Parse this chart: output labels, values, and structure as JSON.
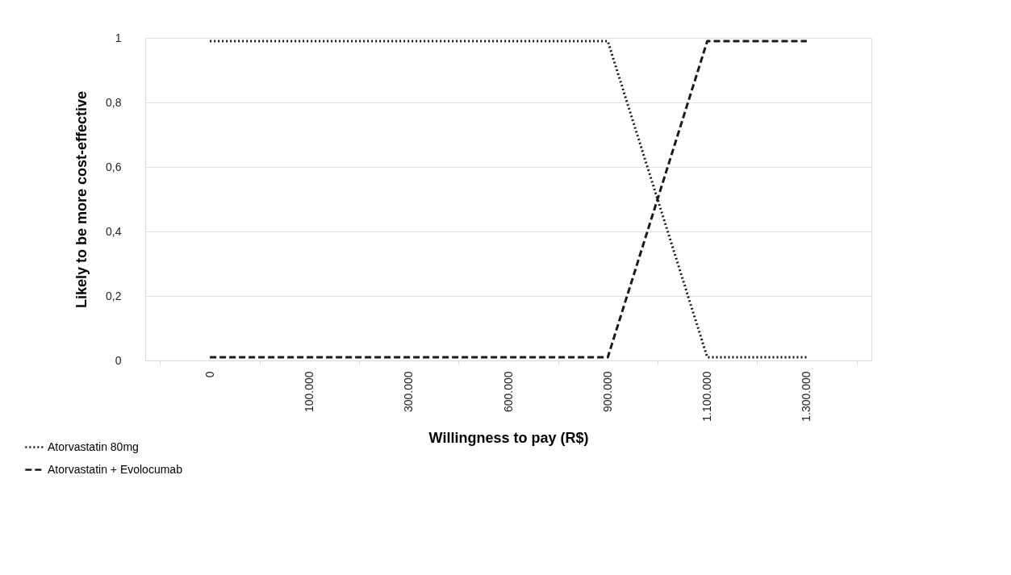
{
  "chart_data": {
    "type": "line",
    "xlabel": "Willingness to pay (R$)",
    "ylabel": "Likely to be more cost-effective",
    "categories": [
      "0",
      "100.000",
      "300.000",
      "600.000",
      "900.000",
      "1.100.000",
      "1.300.000"
    ],
    "series": [
      {
        "name": "Atorvastatin 80mg",
        "color": "#1a1a1a",
        "line_style": "dotted",
        "values": [
          0.99,
          0.99,
          0.99,
          0.99,
          0.99,
          0.01,
          0.01
        ]
      },
      {
        "name": "Atorvastatin + Evolocumab",
        "color": "#1a1a1a",
        "line_style": "dashed",
        "values": [
          0.01,
          0.01,
          0.01,
          0.01,
          0.01,
          0.99,
          0.99
        ]
      }
    ],
    "ylim": [
      0,
      1
    ],
    "yticks": [
      0,
      {
        "value": 0.2,
        "label": "0,2"
      },
      {
        "value": 0.4,
        "label": "0,4"
      },
      {
        "value": 0.6,
        "label": "0,6"
      },
      {
        "value": 0.8,
        "label": "0,8"
      },
      1
    ],
    "grid": "y",
    "legend": "bottom left",
    "marker": "none"
  }
}
